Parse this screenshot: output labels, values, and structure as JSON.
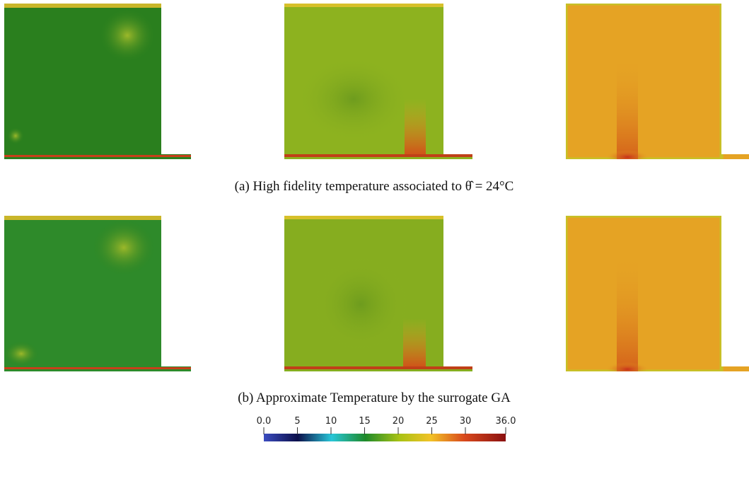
{
  "captions": {
    "a": "(a) High fidelity temperature associated to θ̂ = 24°C",
    "b": "(b) Approximate Temperature by the surrogate GA"
  },
  "colorbar": {
    "range": [
      0,
      36
    ],
    "ticks": [
      {
        "value": 0,
        "label": "0.0"
      },
      5,
      10,
      15,
      20,
      25,
      30,
      {
        "value": 36,
        "label": "36.0"
      }
    ]
  }
}
